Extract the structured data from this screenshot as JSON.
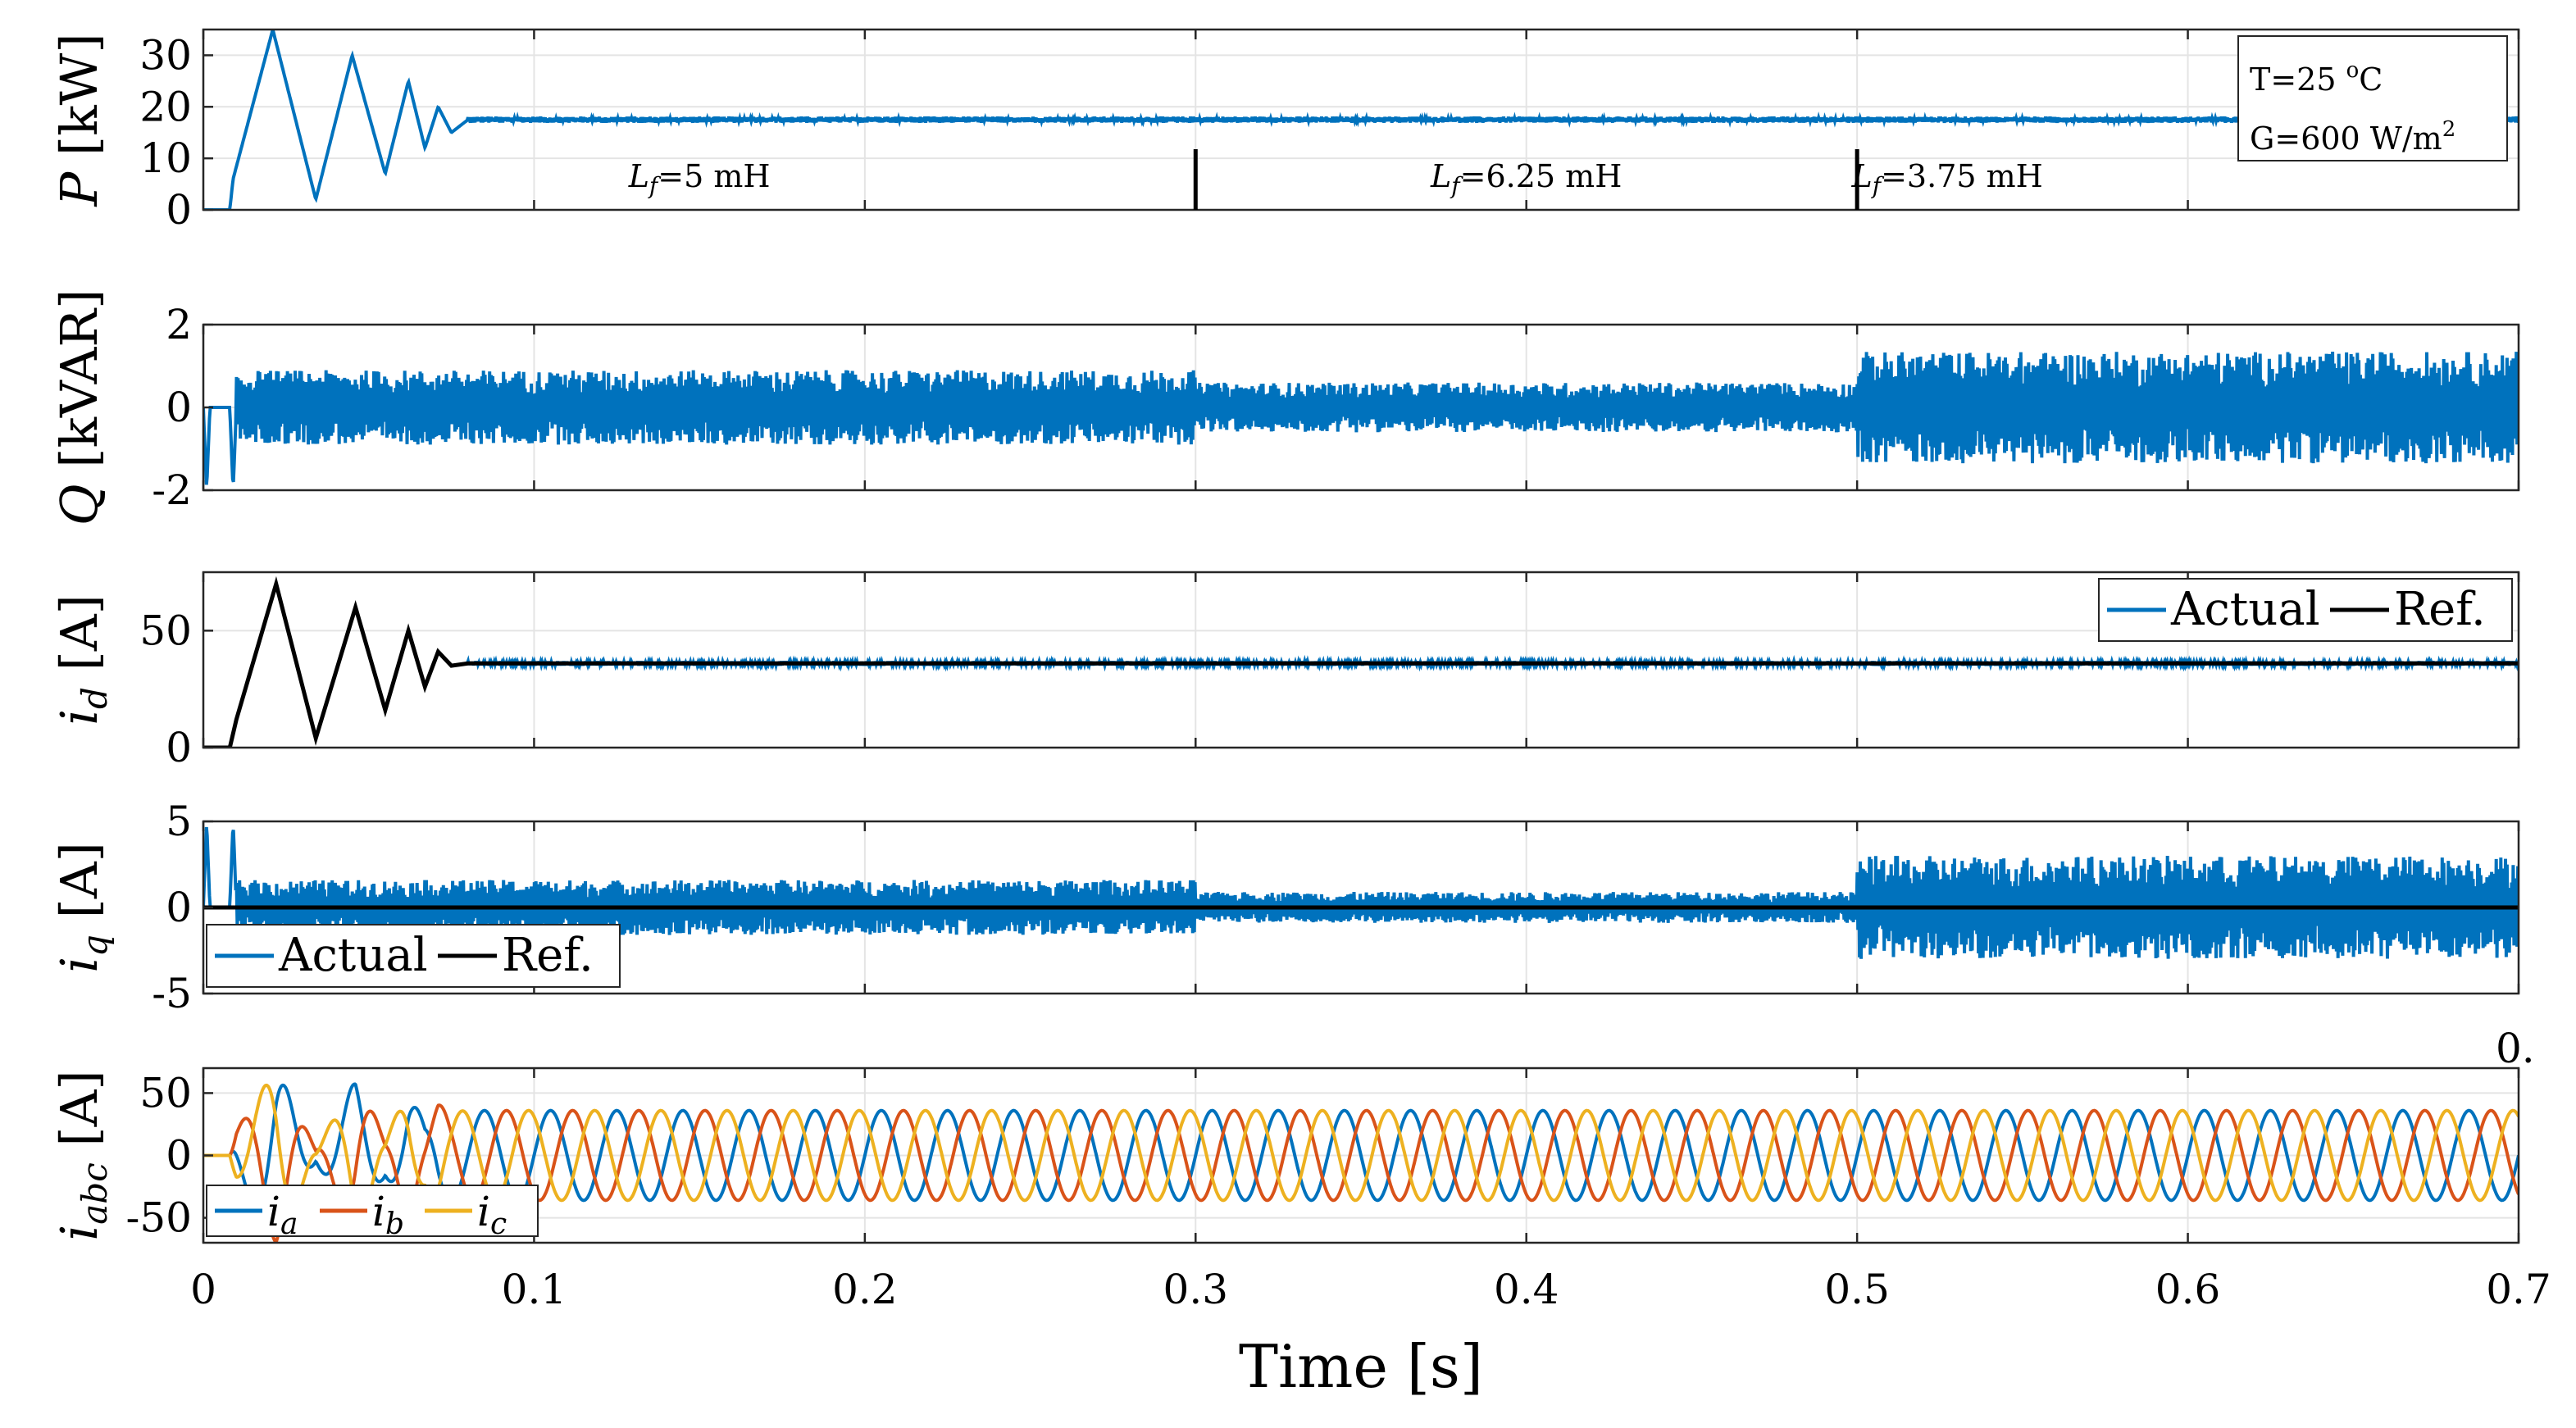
{
  "chart_data": {
    "type": "line",
    "xlabel": "Time [s]",
    "x_ticks": [
      "0",
      "0.1",
      "0.2",
      "0.3",
      "0.4",
      "0.5",
      "0.6",
      "0.7"
    ],
    "xlim": [
      0,
      0.7
    ],
    "grid": true,
    "colors": {
      "blue": "#0072BD",
      "orange": "#D95319",
      "yellow": "#EDB120",
      "black": "#000000",
      "grid": "#e4e4e4"
    },
    "cut_label": "0.",
    "inductance_segments": [
      {
        "label": "L",
        "sub": "f",
        "value": "=5 mH",
        "t_start": 0.0,
        "t_end": 0.3
      },
      {
        "label": "L",
        "sub": "f",
        "value": "=6.25 mH",
        "t_start": 0.3,
        "t_end": 0.5
      },
      {
        "label": "L",
        "sub": "f",
        "value": "=3.75 mH",
        "t_start": 0.5,
        "t_end": 0.7
      }
    ],
    "conditions": {
      "temperature": "T=25 ",
      "temperature_unit_sup": "o",
      "temperature_unit": "C",
      "irradiance": "G=600 W/m",
      "irradiance_sup": "2"
    },
    "panels": [
      {
        "id": "P",
        "ylabel_var": "P",
        "ylabel_unit": " [kW]",
        "ylim": [
          0,
          35
        ],
        "y_ticks": [
          0,
          10,
          20,
          30
        ],
        "series": [
          {
            "name": "P",
            "color": "blue",
            "points": [
              [
                0.0,
                0
              ],
              [
                0.008,
                0
              ],
              [
                0.009,
                6
              ],
              [
                0.021,
                35
              ],
              [
                0.034,
                2
              ],
              [
                0.045,
                30
              ],
              [
                0.055,
                7
              ],
              [
                0.062,
                25
              ],
              [
                0.067,
                12
              ],
              [
                0.071,
                20
              ],
              [
                0.075,
                15
              ],
              [
                0.08,
                17.5
              ],
              [
                0.7,
                17.5
              ]
            ],
            "ripple": [
              [
                0.08,
                0.7,
                0.6
              ]
            ]
          }
        ]
      },
      {
        "id": "Q",
        "ylabel_var": "Q",
        "ylabel_unit": " [kVAR]",
        "ylim": [
          -2,
          2
        ],
        "y_ticks": [
          -2,
          0,
          2
        ],
        "series": [
          {
            "name": "Q",
            "color": "blue",
            "points": [
              [
                0.0,
                0
              ],
              [
                0.001,
                -2
              ],
              [
                0.002,
                0
              ],
              [
                0.008,
                0
              ],
              [
                0.009,
                -2
              ],
              [
                0.01,
                0
              ],
              [
                0.7,
                0
              ]
            ],
            "ripple": [
              [
                0.01,
                0.3,
                0.9
              ],
              [
                0.3,
                0.5,
                0.6
              ],
              [
                0.5,
                0.7,
                1.35
              ]
            ]
          }
        ]
      },
      {
        "id": "id",
        "ylabel_var": "i",
        "ylabel_sub": "d",
        "ylabel_unit": " [A]",
        "ylim": [
          0,
          75
        ],
        "y_ticks": [
          0,
          50
        ],
        "legend": {
          "entries": [
            {
              "label": "Actual",
              "color": "blue"
            },
            {
              "label": "Ref.",
              "color": "black"
            }
          ],
          "location": "top-right"
        },
        "series": [
          {
            "name": "Actual",
            "color": "blue",
            "points": [
              [
                0.0,
                0
              ],
              [
                0.008,
                0
              ],
              [
                0.01,
                12
              ],
              [
                0.022,
                70
              ],
              [
                0.034,
                4
              ],
              [
                0.046,
                60
              ],
              [
                0.055,
                16
              ],
              [
                0.062,
                50
              ],
              [
                0.067,
                26
              ],
              [
                0.071,
                41
              ],
              [
                0.075,
                35
              ],
              [
                0.08,
                36
              ],
              [
                0.7,
                36
              ]
            ],
            "ripple": [
              [
                0.08,
                0.7,
                1.0
              ]
            ]
          },
          {
            "name": "Ref.",
            "color": "black",
            "points": [
              [
                0.0,
                0
              ],
              [
                0.008,
                0
              ],
              [
                0.01,
                12
              ],
              [
                0.022,
                70
              ],
              [
                0.034,
                4
              ],
              [
                0.046,
                60
              ],
              [
                0.055,
                16
              ],
              [
                0.062,
                50
              ],
              [
                0.067,
                26
              ],
              [
                0.071,
                41
              ],
              [
                0.075,
                35
              ],
              [
                0.08,
                36
              ],
              [
                0.7,
                36
              ]
            ]
          }
        ]
      },
      {
        "id": "iq",
        "ylabel_var": "i",
        "ylabel_sub": "q",
        "ylabel_unit": " [A]",
        "ylim": [
          -5,
          5
        ],
        "y_ticks": [
          -5,
          0,
          5
        ],
        "legend": {
          "entries": [
            {
              "label": "Actual",
              "color": "blue"
            },
            {
              "label": "Ref.",
              "color": "black"
            }
          ],
          "location": "bottom-left"
        },
        "series": [
          {
            "name": "Actual",
            "color": "blue",
            "points": [
              [
                0.0,
                0
              ],
              [
                0.001,
                5
              ],
              [
                0.002,
                0
              ],
              [
                0.008,
                0
              ],
              [
                0.009,
                5
              ],
              [
                0.01,
                0
              ],
              [
                0.7,
                0
              ]
            ],
            "ripple": [
              [
                0.01,
                0.3,
                1.6
              ],
              [
                0.3,
                0.5,
                0.9
              ],
              [
                0.5,
                0.7,
                3.0
              ]
            ]
          },
          {
            "name": "Ref.",
            "color": "black",
            "points": [
              [
                0.0,
                0
              ],
              [
                0.7,
                0
              ]
            ]
          }
        ]
      },
      {
        "id": "iabc",
        "ylabel_var": "i",
        "ylabel_sub": "abc",
        "ylabel_unit": " [A]",
        "ylim": [
          -70,
          70
        ],
        "y_ticks": [
          -50,
          0,
          50
        ],
        "legend": {
          "entries": [
            {
              "label": "i",
              "sub": "a",
              "color": "blue"
            },
            {
              "label": "i",
              "sub": "b",
              "color": "orange"
            },
            {
              "label": "i",
              "sub": "c",
              "color": "yellow"
            }
          ],
          "location": "bottom-left"
        },
        "three_phase": {
          "frequency_hz": 50,
          "amplitude_steady": 36,
          "phase_deg": [
            0,
            -120,
            120
          ],
          "transient_envelope": [
            [
              0.0,
              0
            ],
            [
              0.008,
              0
            ],
            [
              0.01,
              20
            ],
            [
              0.022,
              70
            ],
            [
              0.034,
              5
            ],
            [
              0.046,
              60
            ],
            [
              0.055,
              16
            ],
            [
              0.062,
              50
            ],
            [
              0.067,
              26
            ],
            [
              0.071,
              41
            ],
            [
              0.075,
              35
            ],
            [
              0.08,
              36
            ],
            [
              0.7,
              36
            ]
          ]
        },
        "series": [
          {
            "name": "i_a",
            "color": "blue"
          },
          {
            "name": "i_b",
            "color": "orange"
          },
          {
            "name": "i_c",
            "color": "yellow"
          }
        ]
      }
    ]
  }
}
